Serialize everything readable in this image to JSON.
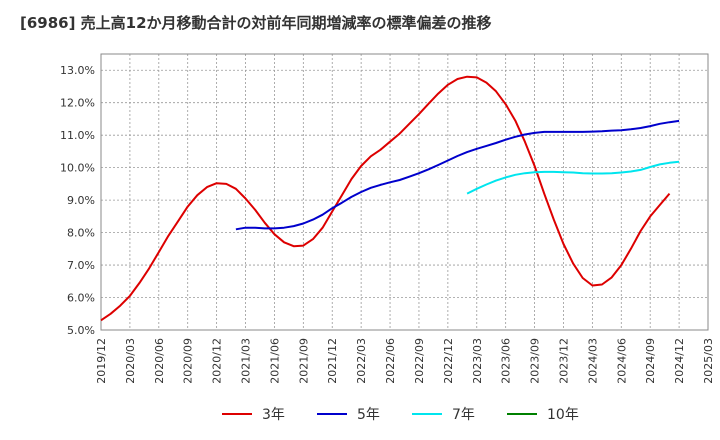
{
  "title": "[6986]  売上高12か月移動合計の対前年同期増減率の標準偏差の推移",
  "chart_data": {
    "type": "line",
    "title": "[6986]  売上高12か月移動合計の対前年同期増減率の標準偏差の推移",
    "xlabel": "",
    "ylabel": "",
    "ylim": [
      5.0,
      13.5
    ],
    "grid": true,
    "legend": "bottom",
    "x_ticks": [
      "2019/12",
      "2020/03",
      "2020/06",
      "2020/09",
      "2020/12",
      "2021/03",
      "2021/06",
      "2021/09",
      "2021/12",
      "2022/03",
      "2022/06",
      "2022/09",
      "2022/12",
      "2023/03",
      "2023/06",
      "2023/09",
      "2023/12",
      "2024/03",
      "2024/06",
      "2024/09",
      "2024/12",
      "2025/03"
    ],
    "y_ticks": [
      5.0,
      6.0,
      7.0,
      8.0,
      9.0,
      10.0,
      11.0,
      12.0,
      13.0
    ],
    "y_tick_labels": [
      "5.0%",
      "6.0%",
      "7.0%",
      "8.0%",
      "9.0%",
      "10.0%",
      "11.0%",
      "12.0%",
      "13.0%"
    ],
    "series": [
      {
        "name": "3年",
        "color": "#dd0000",
        "x": [
          "2019/12",
          "2020/01",
          "2020/02",
          "2020/03",
          "2020/04",
          "2020/05",
          "2020/06",
          "2020/07",
          "2020/08",
          "2020/09",
          "2020/10",
          "2020/11",
          "2020/12",
          "2021/01",
          "2021/02",
          "2021/03",
          "2021/04",
          "2021/05",
          "2021/06",
          "2021/07",
          "2021/08",
          "2021/09",
          "2021/10",
          "2021/11",
          "2021/12",
          "2022/01",
          "2022/02",
          "2022/03",
          "2022/04",
          "2022/05",
          "2022/06",
          "2022/07",
          "2022/08",
          "2022/09",
          "2022/10",
          "2022/11",
          "2022/12",
          "2023/01",
          "2023/02",
          "2023/03",
          "2023/04",
          "2023/05",
          "2023/06",
          "2023/07",
          "2023/08",
          "2023/09",
          "2023/10",
          "2023/11",
          "2023/12",
          "2024/01",
          "2024/02",
          "2024/03",
          "2024/04",
          "2024/05",
          "2024/06",
          "2024/07",
          "2024/08",
          "2024/09",
          "2024/10",
          "2024/11",
          "2024/12"
        ],
        "values": [
          5.3,
          5.5,
          5.75,
          6.05,
          6.45,
          6.9,
          7.4,
          7.9,
          8.35,
          8.8,
          9.15,
          9.4,
          9.52,
          9.5,
          9.35,
          9.05,
          8.7,
          8.3,
          7.95,
          7.7,
          7.58,
          7.6,
          7.8,
          8.15,
          8.65,
          9.15,
          9.65,
          10.05,
          10.35,
          10.55,
          10.8,
          11.05,
          11.35,
          11.65,
          11.97,
          12.28,
          12.55,
          12.73,
          12.8,
          12.78,
          12.62,
          12.35,
          11.95,
          11.45,
          10.8,
          10.05,
          9.2,
          8.4,
          7.65,
          7.05,
          6.6,
          6.37,
          6.4,
          6.62,
          7.0,
          7.5,
          8.05,
          8.5,
          8.85,
          9.2,
          null
        ],
        "values_note": ""
      },
      {
        "name": "5年",
        "color": "#0000cc",
        "x": [
          "2021/02",
          "2021/03",
          "2021/04",
          "2021/05",
          "2021/06",
          "2021/07",
          "2021/08",
          "2021/09",
          "2021/10",
          "2021/11",
          "2021/12",
          "2022/01",
          "2022/02",
          "2022/03",
          "2022/04",
          "2022/05",
          "2022/06",
          "2022/07",
          "2022/08",
          "2022/09",
          "2022/10",
          "2022/11",
          "2022/12",
          "2023/01",
          "2023/02",
          "2023/03",
          "2023/04",
          "2023/05",
          "2023/06",
          "2023/07",
          "2023/08",
          "2023/09",
          "2023/10",
          "2023/11",
          "2023/12",
          "2024/01",
          "2024/02",
          "2024/03",
          "2024/04",
          "2024/05",
          "2024/06",
          "2024/07",
          "2024/08",
          "2024/09",
          "2024/10",
          "2024/11",
          "2024/12"
        ],
        "values": [
          8.1,
          8.15,
          8.15,
          8.13,
          8.13,
          8.15,
          8.2,
          8.28,
          8.4,
          8.55,
          8.75,
          8.92,
          9.1,
          9.25,
          9.38,
          9.47,
          9.55,
          9.62,
          9.72,
          9.83,
          9.95,
          10.08,
          10.22,
          10.36,
          10.48,
          10.58,
          10.67,
          10.76,
          10.86,
          10.95,
          11.02,
          11.07,
          11.1,
          11.1,
          11.1,
          11.1,
          11.1,
          11.11,
          11.12,
          11.14,
          11.15,
          11.18,
          11.22,
          11.28,
          11.35,
          11.4,
          11.44
        ]
      },
      {
        "name": "7年",
        "color": "#00e5ee",
        "x": [
          "2023/02",
          "2023/03",
          "2023/04",
          "2023/05",
          "2023/06",
          "2023/07",
          "2023/08",
          "2023/09",
          "2023/10",
          "2023/11",
          "2023/12",
          "2024/01",
          "2024/02",
          "2024/03",
          "2024/04",
          "2024/05",
          "2024/06",
          "2024/07",
          "2024/08",
          "2024/09",
          "2024/10",
          "2024/11",
          "2024/12"
        ],
        "values": [
          9.2,
          9.35,
          9.48,
          9.6,
          9.7,
          9.78,
          9.83,
          9.86,
          9.87,
          9.87,
          9.86,
          9.85,
          9.83,
          9.82,
          9.82,
          9.83,
          9.85,
          9.88,
          9.93,
          10.02,
          10.1,
          10.15,
          10.18
        ]
      },
      {
        "name": "10年",
        "color": "#008000",
        "x": [],
        "values": []
      }
    ]
  }
}
